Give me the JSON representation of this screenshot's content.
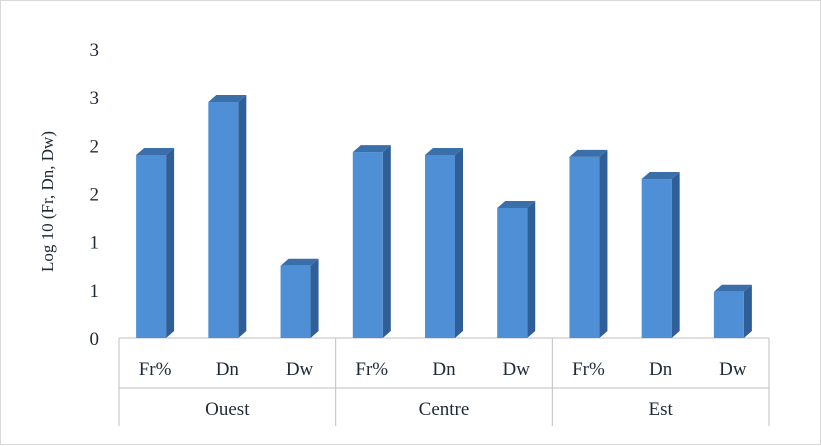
{
  "chart_data": {
    "type": "bar",
    "ylabel": "Log 10 (Fr, Dn, Dw)",
    "ylim": [
      0,
      3
    ],
    "y_tick_labels": [
      "0",
      "1",
      "1",
      "2",
      "2",
      "3",
      "3"
    ],
    "groups": [
      {
        "label": "Ouest",
        "categories": [
          "Fr%",
          "Dn",
          "Dw"
        ],
        "values": [
          1.9,
          2.45,
          0.75
        ]
      },
      {
        "label": "Centre",
        "categories": [
          "Fr%",
          "Dn",
          "Dw"
        ],
        "values": [
          1.93,
          1.9,
          1.35
        ]
      },
      {
        "label": "Est",
        "categories": [
          "Fr%",
          "Dn",
          "Dw"
        ],
        "values": [
          1.88,
          1.65,
          0.48
        ]
      }
    ],
    "bar_color": "#4f8fd6",
    "bar_side_color": "#2f5f96",
    "bar_top_color": "#3b6fa9",
    "grid": false,
    "legend": "none"
  }
}
